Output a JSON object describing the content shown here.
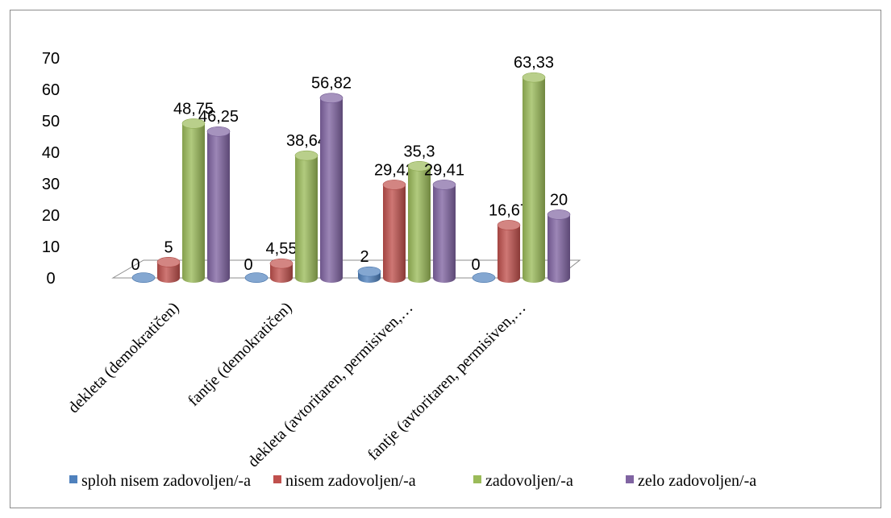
{
  "chart_data": {
    "type": "bar",
    "subtype": "3d-clustered-column",
    "title": "",
    "xlabel": "",
    "ylabel": "",
    "ylim": [
      0,
      70
    ],
    "yticks": [
      0,
      10,
      20,
      30,
      40,
      50,
      60,
      70
    ],
    "grid": false,
    "legend_position": "bottom",
    "categories": [
      "dekleta (demokratičen)",
      "fantje (demokratičen)",
      "dekleta (avtoritaren, permisiven,…",
      "fantje (avtoritaren, permisiven,…"
    ],
    "series": [
      {
        "name": "sploh nisem zadovoljen/-a",
        "color": "#4f81bd",
        "values": [
          0,
          0,
          2,
          0
        ],
        "labels": [
          "0",
          "0",
          "2",
          "0"
        ]
      },
      {
        "name": "nisem zadovoljen/-a",
        "color": "#c0504d",
        "values": [
          5,
          4.55,
          29.42,
          16.67
        ],
        "labels": [
          "5",
          "4,55",
          "29,42",
          "16,67"
        ]
      },
      {
        "name": "zadovoljen/-a",
        "color": "#9bbb59",
        "values": [
          48.75,
          38.64,
          35.3,
          63.33
        ],
        "labels": [
          "48,75",
          "38,64",
          "35,3",
          "63,33"
        ]
      },
      {
        "name": "zelo zadovoljen/-a",
        "color": "#8064a2",
        "values": [
          46.25,
          56.82,
          29.41,
          20
        ],
        "labels": [
          "46,25",
          "56,82",
          "29,41",
          "20"
        ]
      }
    ]
  }
}
